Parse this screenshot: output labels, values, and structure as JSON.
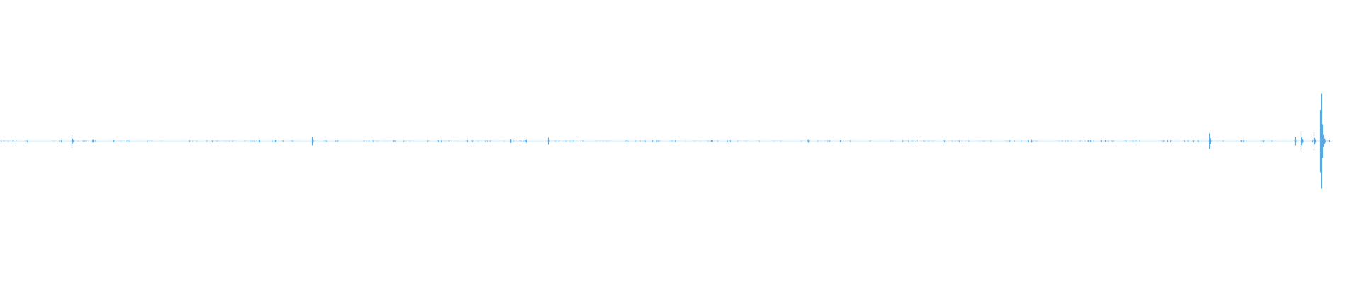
{
  "chart_data": {
    "type": "waveform",
    "color": "#5aa9e0",
    "total_bins": 1880,
    "baseline_amplitude": 0.005,
    "ylim": [
      -1,
      1
    ],
    "peaks": [
      {
        "bin": 101,
        "amplitude": 0.045
      },
      {
        "bin": 131,
        "amplitude": 0.01
      },
      {
        "bin": 440,
        "amplitude": 0.03
      },
      {
        "bin": 720,
        "amplitude": 0.012
      },
      {
        "bin": 733,
        "amplitude": 0.008
      },
      {
        "bin": 742,
        "amplitude": 0.01
      },
      {
        "bin": 773,
        "amplitude": 0.025
      },
      {
        "bin": 1140,
        "amplitude": 0.01
      },
      {
        "bin": 1293,
        "amplitude": 0.008
      },
      {
        "bin": 1455,
        "amplitude": 0.01
      },
      {
        "bin": 1602,
        "amplitude": 0.008
      },
      {
        "bin": 1706,
        "amplitude": 0.055
      },
      {
        "bin": 1827,
        "amplitude": 0.03
      },
      {
        "bin": 1835,
        "amplitude": 0.075
      },
      {
        "bin": 1853,
        "amplitude": 0.065
      },
      {
        "bin": 1862,
        "amplitude": 0.22
      },
      {
        "bin": 1864,
        "amplitude": 0.335
      },
      {
        "bin": 1866,
        "amplitude": 0.12
      }
    ]
  }
}
